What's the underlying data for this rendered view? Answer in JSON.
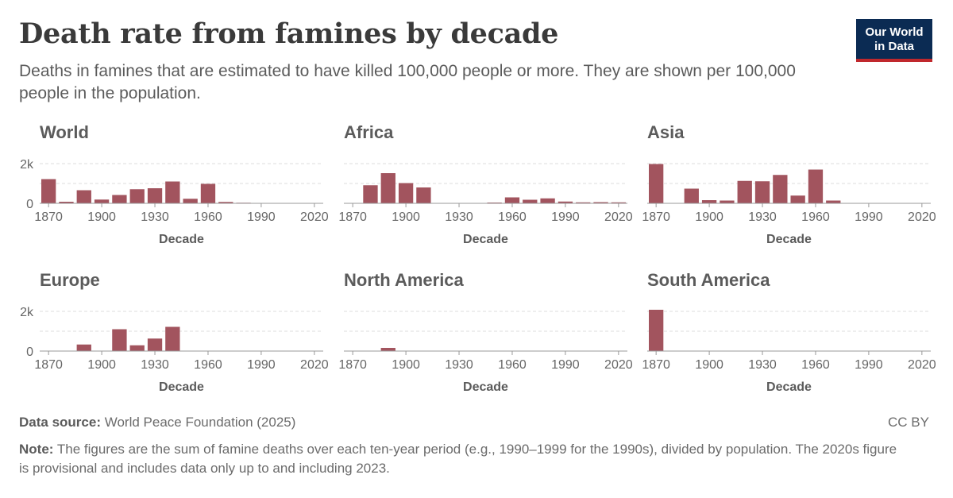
{
  "header": {
    "title": "Death rate from famines by decade",
    "subtitle": "Deaths in famines that are estimated to have killed 100,000 people or more. They are shown per 100,000 people in the population.",
    "logo_line1": "Our World",
    "logo_line2": "in Data"
  },
  "footer": {
    "source_label": "Data source:",
    "source_text": "World Peace Foundation (2025)",
    "license": "CC BY",
    "note_label": "Note:",
    "note_text": "The figures are the sum of famine deaths over each ten-year period (e.g., 1990–1999 for the 1990s), divided by population. The 2020s figure is provisional and includes data only up to and including 2023."
  },
  "colors": {
    "bar": "#a2545e",
    "grid": "#dddddd",
    "logo_bg": "#0b2b53",
    "logo_stripe": "#c0282d"
  },
  "chart_data": [
    {
      "type": "bar",
      "title": "World",
      "xlabel": "Decade",
      "ylabel": "",
      "ylim": [
        0,
        2000
      ],
      "yticks": [
        0,
        2000
      ],
      "ytick_labels": [
        "0",
        "2k"
      ],
      "xticks": [
        1870,
        1900,
        1930,
        1960,
        1990,
        2020
      ],
      "grid": true,
      "x": [
        1870,
        1880,
        1890,
        1900,
        1910,
        1920,
        1930,
        1940,
        1950,
        1960,
        1970,
        1980,
        1990,
        2000,
        2010,
        2020
      ],
      "values": [
        1220,
        80,
        660,
        190,
        420,
        710,
        760,
        1100,
        230,
        980,
        70,
        30,
        20,
        15,
        10,
        10
      ]
    },
    {
      "type": "bar",
      "title": "Africa",
      "xlabel": "Decade",
      "ylabel": "",
      "ylim": [
        0,
        2000
      ],
      "yticks": [
        0,
        2000
      ],
      "ytick_labels": [
        "",
        ""
      ],
      "xticks": [
        1870,
        1900,
        1930,
        1960,
        1990,
        2020
      ],
      "grid": true,
      "x": [
        1870,
        1880,
        1890,
        1900,
        1910,
        1920,
        1930,
        1940,
        1950,
        1960,
        1970,
        1980,
        1990,
        2000,
        2010,
        2020
      ],
      "values": [
        0,
        910,
        1520,
        1020,
        800,
        0,
        0,
        0,
        40,
        300,
        180,
        250,
        90,
        50,
        60,
        50
      ]
    },
    {
      "type": "bar",
      "title": "Asia",
      "xlabel": "Decade",
      "ylabel": "",
      "ylim": [
        0,
        2000
      ],
      "yticks": [
        0,
        2000
      ],
      "ytick_labels": [
        "",
        ""
      ],
      "xticks": [
        1870,
        1900,
        1930,
        1960,
        1990,
        2020
      ],
      "grid": true,
      "x": [
        1870,
        1880,
        1890,
        1900,
        1910,
        1920,
        1930,
        1940,
        1950,
        1960,
        1970,
        1980,
        1990,
        2000,
        2010,
        2020
      ],
      "values": [
        1980,
        0,
        740,
        160,
        140,
        1130,
        1110,
        1430,
        390,
        1700,
        140,
        0,
        0,
        0,
        0,
        0
      ]
    },
    {
      "type": "bar",
      "title": "Europe",
      "xlabel": "Decade",
      "ylabel": "",
      "ylim": [
        0,
        2000
      ],
      "yticks": [
        0,
        2000
      ],
      "ytick_labels": [
        "0",
        "2k"
      ],
      "xticks": [
        1870,
        1900,
        1930,
        1960,
        1990,
        2020
      ],
      "grid": true,
      "x": [
        1870,
        1880,
        1890,
        1900,
        1910,
        1920,
        1930,
        1940,
        1950,
        1960,
        1970,
        1980,
        1990,
        2000,
        2010,
        2020
      ],
      "values": [
        0,
        0,
        330,
        0,
        1100,
        290,
        630,
        1220,
        0,
        0,
        0,
        0,
        0,
        0,
        0,
        0
      ]
    },
    {
      "type": "bar",
      "title": "North America",
      "xlabel": "Decade",
      "ylabel": "",
      "ylim": [
        0,
        2000
      ],
      "yticks": [
        0,
        2000
      ],
      "ytick_labels": [
        "",
        ""
      ],
      "xticks": [
        1870,
        1900,
        1930,
        1960,
        1990,
        2020
      ],
      "grid": true,
      "x": [
        1870,
        1880,
        1890,
        1900,
        1910,
        1920,
        1930,
        1940,
        1950,
        1960,
        1970,
        1980,
        1990,
        2000,
        2010,
        2020
      ],
      "values": [
        0,
        0,
        160,
        0,
        0,
        0,
        0,
        0,
        0,
        0,
        0,
        0,
        0,
        0,
        0,
        0
      ]
    },
    {
      "type": "bar",
      "title": "South America",
      "xlabel": "Decade",
      "ylabel": "",
      "ylim": [
        0,
        2000
      ],
      "yticks": [
        0,
        2000
      ],
      "ytick_labels": [
        "",
        ""
      ],
      "xticks": [
        1870,
        1900,
        1930,
        1960,
        1990,
        2020
      ],
      "grid": true,
      "x": [
        1870,
        1880,
        1890,
        1900,
        1910,
        1920,
        1930,
        1940,
        1950,
        1960,
        1970,
        1980,
        1990,
        2000,
        2010,
        2020
      ],
      "values": [
        2080,
        0,
        0,
        0,
        0,
        0,
        0,
        0,
        0,
        0,
        0,
        0,
        0,
        0,
        0,
        0
      ]
    }
  ]
}
